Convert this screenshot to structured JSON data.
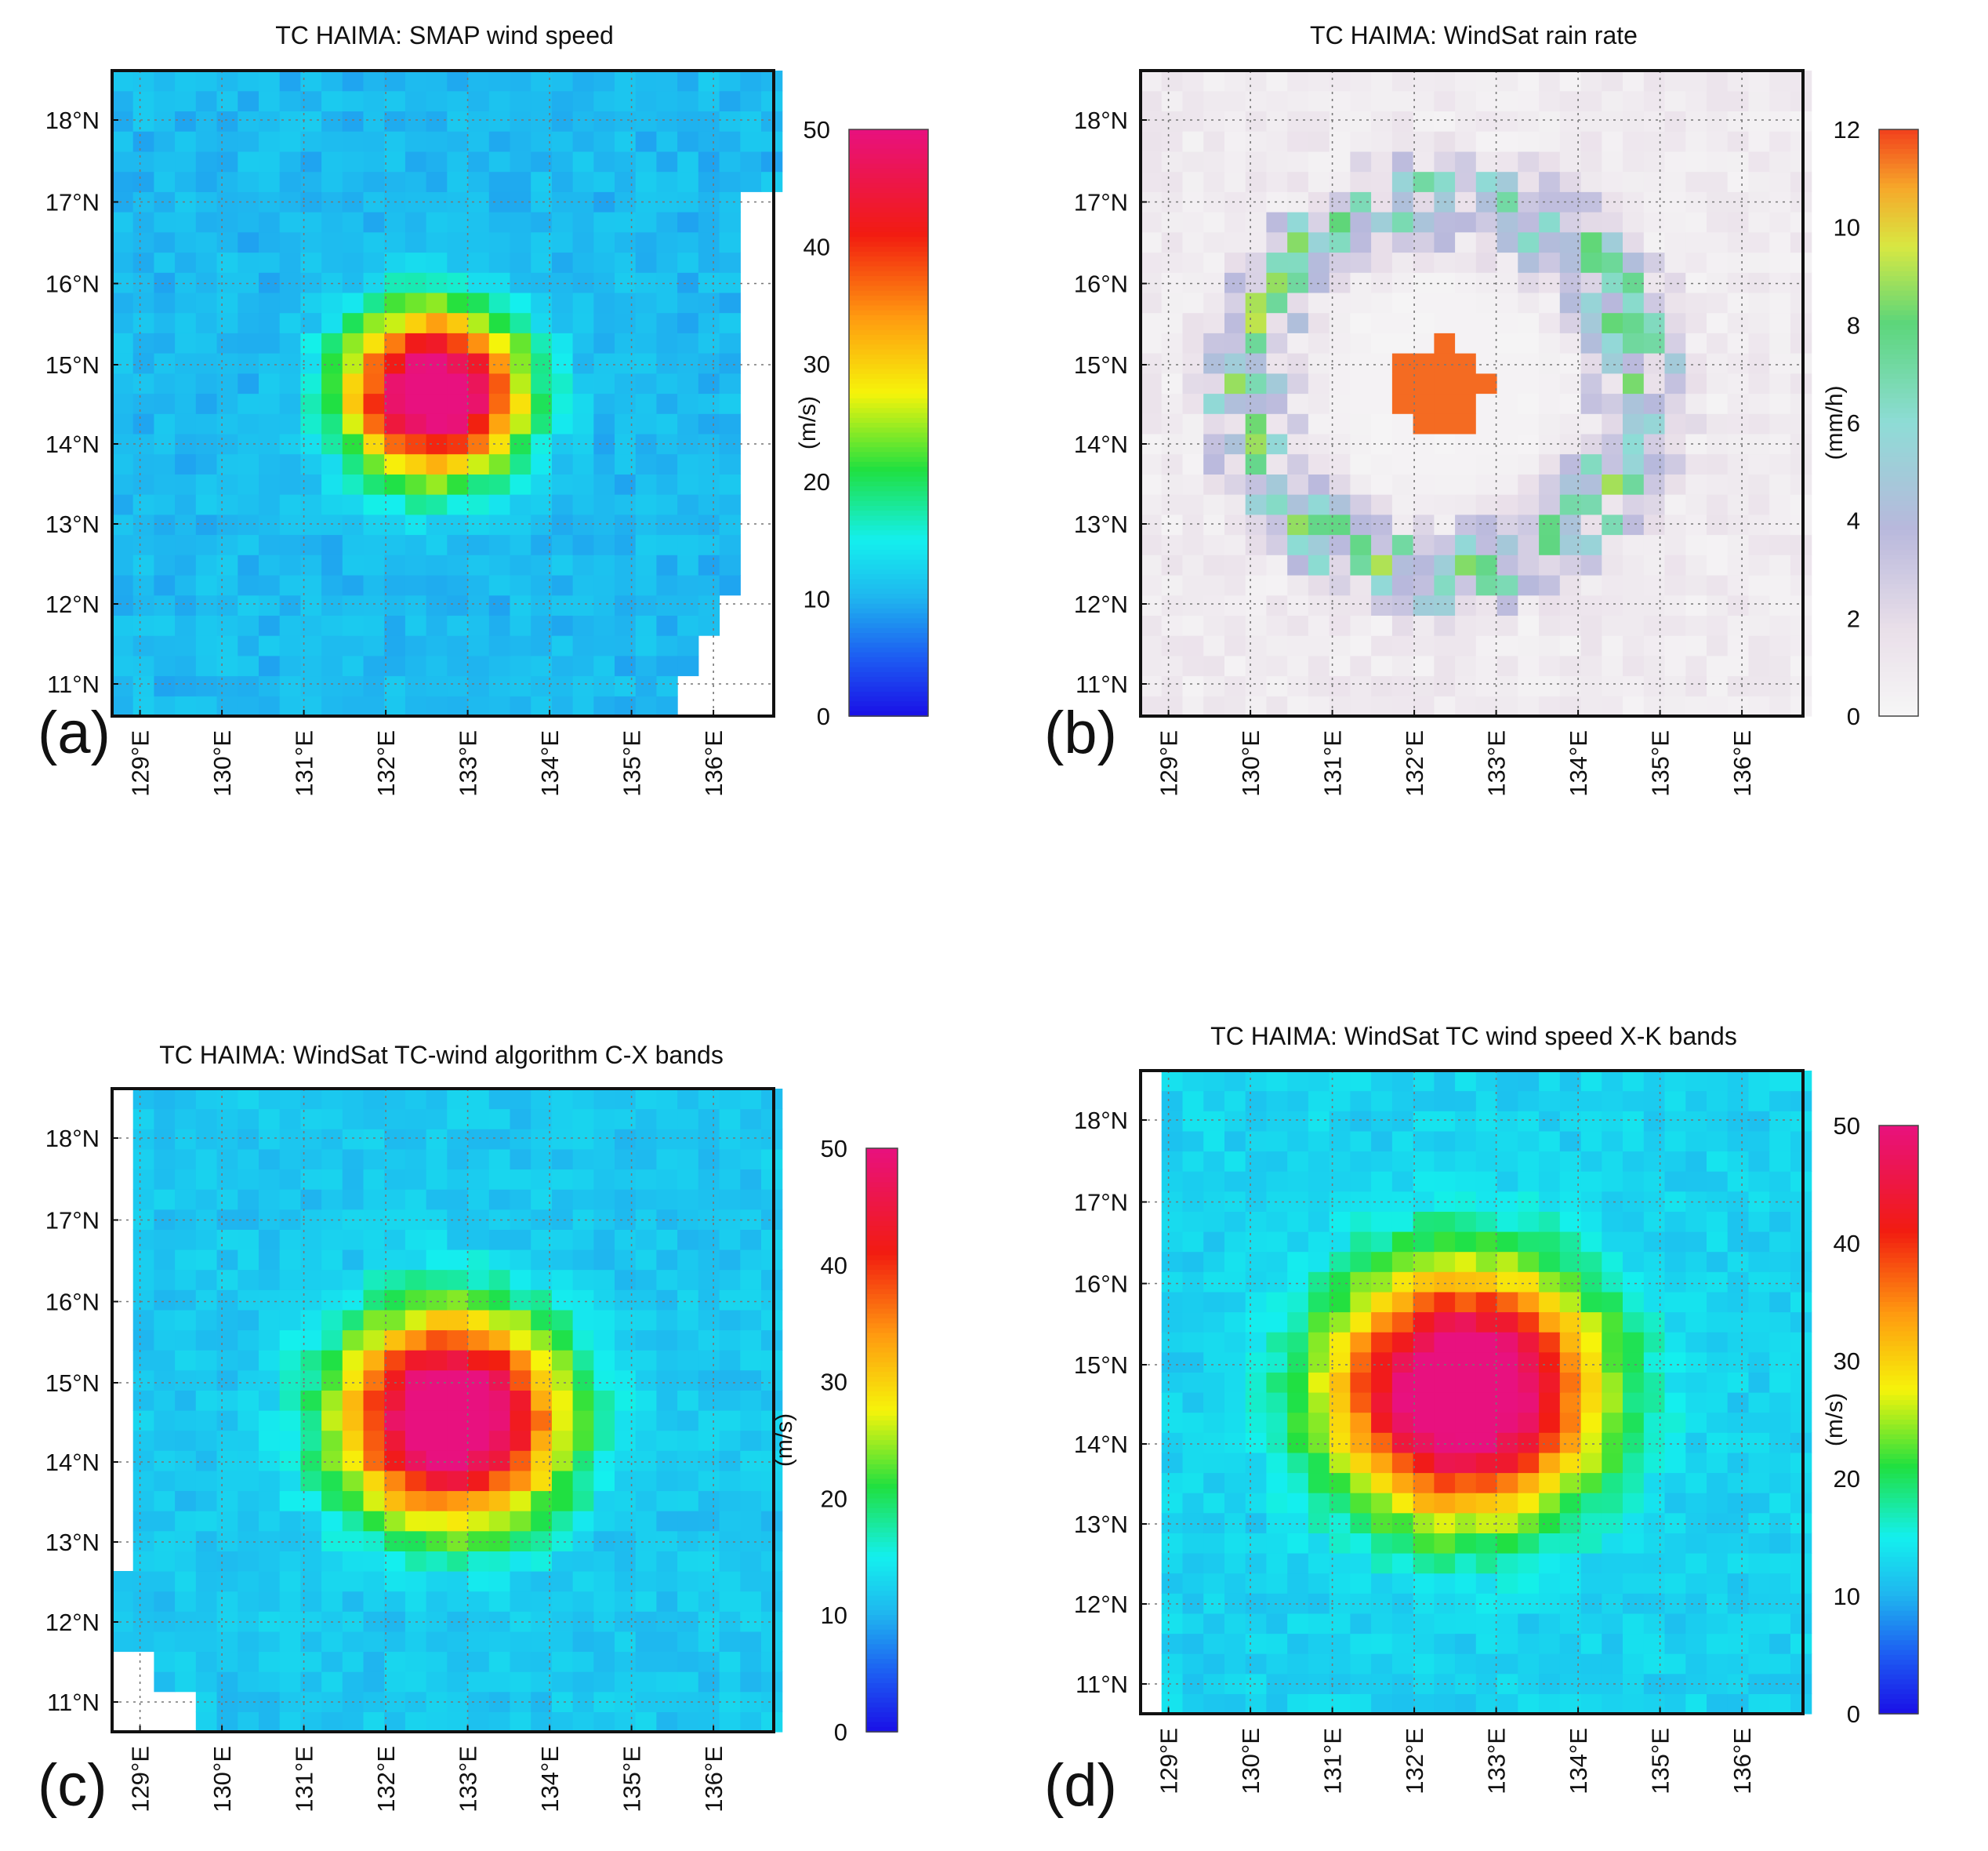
{
  "figure": {
    "panels": [
      {
        "label": "(a)",
        "title": "TC HAIMA: SMAP wind speed"
      },
      {
        "label": "(b)",
        "title": "TC HAIMA: WindSat rain rate"
      },
      {
        "label": "(c)",
        "title": "TC HAIMA: WindSat TC-wind algorithm C-X bands"
      },
      {
        "label": "(d)",
        "title": "TC HAIMA: WindSat TC wind speed X-K bands"
      }
    ]
  },
  "chart_data": [
    {
      "type": "heatmap",
      "label": "(a)",
      "title": "TC HAIMA: SMAP wind speed",
      "x_ticks": [
        "129°E",
        "130°E",
        "131°E",
        "132°E",
        "133°E",
        "134°E",
        "135°E",
        "136°E"
      ],
      "y_ticks": [
        "18°N",
        "17°N",
        "16°N",
        "15°N",
        "14°N",
        "13°N",
        "12°N",
        "11°N"
      ],
      "xlim": [
        128.7,
        136.6
      ],
      "ylim": [
        10.6,
        18.6
      ],
      "colorbar": {
        "label": "(m/s)",
        "range": [
          0,
          50
        ],
        "ticks": [
          "50",
          "40",
          "30",
          "20",
          "10",
          "0"
        ],
        "colormap": "wind"
      },
      "field": {
        "center": [
          132.55,
          14.6
        ],
        "peak": 48,
        "background": 12,
        "radius_deg": 1.25,
        "eye_deg": 0.55,
        "missing_region": "east edge / southeast corner"
      }
    },
    {
      "type": "heatmap",
      "label": "(b)",
      "title": "TC HAIMA: WindSat rain rate",
      "x_ticks": [
        "129°E",
        "130°E",
        "131°E",
        "132°E",
        "133°E",
        "134°E",
        "135°E",
        "136°E"
      ],
      "y_ticks": [
        "18°N",
        "17°N",
        "16°N",
        "15°N",
        "14°N",
        "13°N",
        "12°N",
        "11°N"
      ],
      "xlim": [
        128.7,
        136.6
      ],
      "ylim": [
        10.6,
        18.6
      ],
      "colorbar": {
        "label": "(mm/h)",
        "range": [
          0,
          12
        ],
        "ticks": [
          "12",
          "10",
          "8",
          "6",
          "4",
          "2",
          "0"
        ],
        "colormap": "rain"
      },
      "field": {
        "center": [
          132.3,
          14.7
        ],
        "peak": 11.5,
        "background": 0.3,
        "rainband_radius_deg": 2.3
      }
    },
    {
      "type": "heatmap",
      "label": "(c)",
      "title": "TC HAIMA: WindSat TC-wind algorithm C-X bands",
      "x_ticks": [
        "129°E",
        "130°E",
        "131°E",
        "132°E",
        "133°E",
        "134°E",
        "135°E",
        "136°E"
      ],
      "y_ticks": [
        "18°N",
        "17°N",
        "16°N",
        "15°N",
        "14°N",
        "13°N",
        "12°N",
        "11°N"
      ],
      "xlim": [
        128.7,
        136.6
      ],
      "ylim": [
        10.6,
        18.6
      ],
      "colorbar": {
        "label": "(m/s)",
        "range": [
          0,
          50
        ],
        "ticks": [
          "50",
          "40",
          "30",
          "20",
          "10",
          "0"
        ],
        "colormap": "wind"
      },
      "field": {
        "center": [
          132.75,
          14.5
        ],
        "peak": 48,
        "background": 13,
        "radius_deg": 1.6,
        "eye_deg": 0.55,
        "missing_region": "west edge / southwest corner"
      }
    },
    {
      "type": "heatmap",
      "label": "(d)",
      "title": "TC HAIMA: WindSat TC wind speed X-K bands",
      "x_ticks": [
        "129°E",
        "130°E",
        "131°E",
        "132°E",
        "133°E",
        "134°E",
        "135°E",
        "136°E"
      ],
      "y_ticks": [
        "18°N",
        "17°N",
        "16°N",
        "15°N",
        "14°N",
        "13°N",
        "12°N",
        "11°N"
      ],
      "xlim": [
        128.7,
        136.6
      ],
      "ylim": [
        10.6,
        18.6
      ],
      "colorbar": {
        "label": "(m/s)",
        "range": [
          0,
          50
        ],
        "ticks": [
          "50",
          "40",
          "30",
          "20",
          "10",
          "0"
        ],
        "colormap": "wind"
      },
      "field": {
        "center": [
          132.55,
          14.6
        ],
        "peak": 48,
        "background": 14,
        "radius_deg": 1.9,
        "eye_deg": 0.6,
        "missing_region": "west edge"
      }
    }
  ]
}
